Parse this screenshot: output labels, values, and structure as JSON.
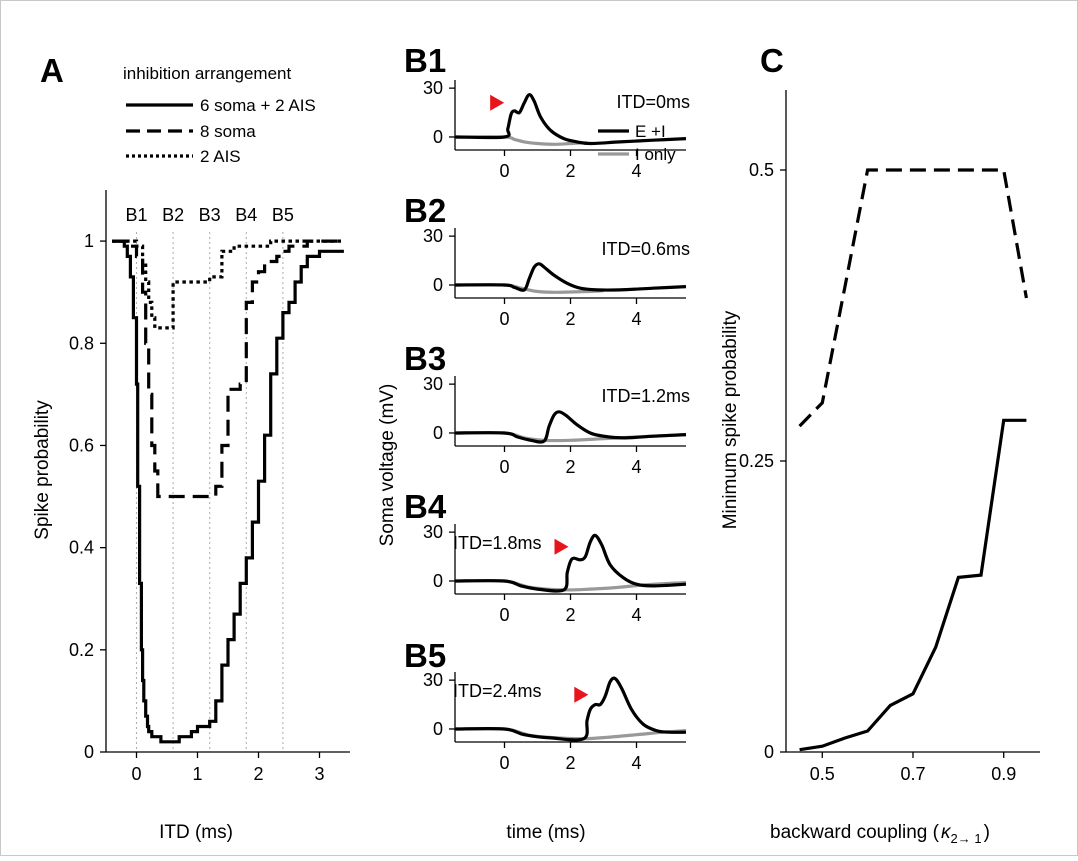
{
  "panels": {
    "A": "A",
    "B1": "B1",
    "B2": "B2",
    "B3": "B3",
    "B4": "B4",
    "B5": "B5",
    "C": "C"
  },
  "colors": {
    "ink": "#000000",
    "i_only": "#999999",
    "marker": "#e8141c",
    "guide": "#b0b0b0"
  },
  "chart_data": [
    {
      "id": "A",
      "type": "line",
      "title": "",
      "xlabel": "ITD (ms)",
      "ylabel": "Spike probability",
      "xlim": [
        -0.5,
        3.5
      ],
      "ylim": [
        0,
        1.1
      ],
      "xticks": [
        "0",
        "1",
        "2",
        "3"
      ],
      "yticks": [
        "0",
        "0.2",
        "0.4",
        "0.6",
        "0.8",
        "1"
      ],
      "legend": {
        "title": "inhibition arrangement",
        "entries": [
          "6 soma + 2 AIS",
          "8 soma",
          "2 AIS"
        ],
        "placement": "top"
      },
      "markers": [
        {
          "label": "B1",
          "x": 0.0
        },
        {
          "label": "B2",
          "x": 0.6
        },
        {
          "label": "B3",
          "x": 1.2
        },
        {
          "label": "B4",
          "x": 1.8
        },
        {
          "label": "B5",
          "x": 2.4
        }
      ],
      "series": [
        {
          "name": "6 soma + 2 AIS",
          "style": "solid",
          "x": [
            -0.4,
            -0.3,
            -0.2,
            -0.15,
            -0.1,
            -0.05,
            0.0,
            0.02,
            0.05,
            0.08,
            0.1,
            0.12,
            0.15,
            0.18,
            0.2,
            0.25,
            0.3,
            0.35,
            0.4,
            0.5,
            0.6,
            0.7,
            0.8,
            0.9,
            1.0,
            1.1,
            1.2,
            1.3,
            1.4,
            1.5,
            1.6,
            1.7,
            1.8,
            1.9,
            2.0,
            2.1,
            2.2,
            2.3,
            2.4,
            2.5,
            2.6,
            2.7,
            2.8,
            2.9,
            3.0,
            3.1,
            3.2,
            3.3,
            3.4
          ],
          "y": [
            1.0,
            1.0,
            0.99,
            0.97,
            0.93,
            0.85,
            0.72,
            0.52,
            0.33,
            0.2,
            0.14,
            0.1,
            0.07,
            0.05,
            0.04,
            0.03,
            0.03,
            0.03,
            0.02,
            0.02,
            0.02,
            0.03,
            0.03,
            0.04,
            0.05,
            0.05,
            0.06,
            0.1,
            0.17,
            0.22,
            0.27,
            0.33,
            0.38,
            0.45,
            0.53,
            0.62,
            0.74,
            0.81,
            0.86,
            0.88,
            0.92,
            0.95,
            0.97,
            0.97,
            0.98,
            0.98,
            0.98,
            0.98,
            0.98
          ]
        },
        {
          "name": "8 soma",
          "style": "dashed",
          "x": [
            -0.4,
            -0.2,
            -0.1,
            0.0,
            0.1,
            0.15,
            0.2,
            0.25,
            0.3,
            0.35,
            0.4,
            0.6,
            0.8,
            1.0,
            1.1,
            1.2,
            1.3,
            1.4,
            1.5,
            1.6,
            1.7,
            1.8,
            1.9,
            2.0,
            2.1,
            2.2,
            2.3,
            2.4,
            2.5,
            2.6,
            2.7,
            2.8,
            3.0,
            3.2,
            3.4
          ],
          "y": [
            1.0,
            1.0,
            0.99,
            0.97,
            0.9,
            0.8,
            0.7,
            0.6,
            0.55,
            0.5,
            0.5,
            0.5,
            0.5,
            0.5,
            0.5,
            0.5,
            0.52,
            0.6,
            0.71,
            0.71,
            0.72,
            0.88,
            0.92,
            0.94,
            0.96,
            0.96,
            0.97,
            0.98,
            0.99,
            0.99,
            0.99,
            1.0,
            1.0,
            1.0,
            1.0
          ]
        },
        {
          "name": "2 AIS",
          "style": "dotted",
          "x": [
            -0.4,
            -0.2,
            0.0,
            0.1,
            0.15,
            0.2,
            0.25,
            0.3,
            0.4,
            0.5,
            0.6,
            0.7,
            0.8,
            1.0,
            1.2,
            1.4,
            1.6,
            1.8,
            2.0,
            2.2,
            2.4,
            2.6,
            2.8,
            3.0,
            3.4
          ],
          "y": [
            1.0,
            1.0,
            0.99,
            0.96,
            0.92,
            0.88,
            0.85,
            0.83,
            0.83,
            0.83,
            0.92,
            0.92,
            0.92,
            0.92,
            0.93,
            0.98,
            0.99,
            0.99,
            0.99,
            1.0,
            1.0,
            1.0,
            1.0,
            1.0,
            1.0
          ]
        }
      ]
    },
    {
      "id": "B",
      "type": "line",
      "xlabel": "time (ms)",
      "ylabel": "Soma voltage (mV)",
      "xlim": [
        -1.5,
        5.5
      ],
      "ylim": [
        -8,
        35
      ],
      "xticks": [
        "0",
        "2",
        "4"
      ],
      "yticks": [
        "0",
        "30"
      ],
      "legend": {
        "entries": [
          "E +I",
          "I only"
        ],
        "placement": "top-right"
      },
      "subplots": [
        {
          "label": "B1",
          "itd": "ITD=0ms",
          "marker_t": 0.05,
          "e_i": {
            "t": [
              -1.5,
              0.0,
              0.1,
              0.2,
              0.3,
              0.45,
              0.6,
              0.75,
              0.9,
              1.1,
              1.4,
              1.8,
              2.2,
              2.6,
              3.5,
              4.5,
              5.5
            ],
            "v": [
              0,
              0,
              5,
              14,
              16,
              15,
              21,
              26,
              22,
              12,
              4,
              -1,
              -3,
              -4,
              -3,
              -2,
              -1
            ]
          },
          "i_only": {
            "t": [
              -1.5,
              0.0,
              0.3,
              0.6,
              1.0,
              1.5,
              2.0,
              2.5
            ],
            "v": [
              0,
              0,
              -1.5,
              -3,
              -4,
              -4.5,
              -4,
              -3.5
            ]
          }
        },
        {
          "label": "B2",
          "itd": "ITD=0.6ms",
          "marker_t": null,
          "e_i": {
            "t": [
              -1.5,
              0.0,
              0.3,
              0.6,
              0.75,
              0.9,
              1.05,
              1.2,
              1.5,
              1.9,
              2.3,
              2.8,
              3.5,
              4.5,
              5.5
            ],
            "v": [
              0,
              0,
              -1.5,
              -3,
              4,
              11,
              13,
              11,
              6,
              1,
              -2,
              -3,
              -3,
              -2,
              -1
            ]
          },
          "i_only": {
            "t": [
              -1.5,
              0.0,
              0.5,
              1.0,
              1.5,
              2.0,
              2.5,
              3.0
            ],
            "v": [
              0,
              0,
              -2,
              -4,
              -4.5,
              -4.3,
              -4,
              -3.5
            ]
          }
        },
        {
          "label": "B3",
          "itd": "ITD=1.2ms",
          "marker_t": null,
          "e_i": {
            "t": [
              -1.5,
              0.0,
              0.4,
              0.8,
              1.2,
              1.35,
              1.5,
              1.65,
              1.85,
              2.2,
              2.6,
              3.0,
              3.6,
              4.5,
              5.5
            ],
            "v": [
              0,
              0,
              -2.5,
              -4.5,
              -5,
              4,
              11,
              13,
              11,
              5,
              0,
              -2,
              -3,
              -2,
              -1
            ]
          },
          "i_only": {
            "t": [
              -1.5,
              0.0,
              0.6,
              1.2,
              2.0,
              3.0,
              4.0,
              5.5
            ],
            "v": [
              0,
              0,
              -3,
              -4.5,
              -4.5,
              -3.5,
              -2.5,
              -1
            ]
          }
        },
        {
          "label": "B4",
          "itd": "ITD=1.8ms",
          "marker_t": 2.0,
          "e_i": {
            "t": [
              -1.5,
              0.0,
              0.5,
              1.0,
              1.8,
              1.9,
              2.0,
              2.1,
              2.3,
              2.45,
              2.6,
              2.75,
              2.95,
              3.2,
              3.6,
              4.0,
              4.5,
              5.5
            ],
            "v": [
              0,
              0,
              -3,
              -5,
              -5.5,
              5,
              12,
              14,
              13,
              15,
              24,
              28,
              22,
              10,
              2,
              -2,
              -3,
              -2
            ]
          },
          "i_only": {
            "t": [
              -1.5,
              0.0,
              0.8,
              1.8,
              2.6,
              3.4,
              4.2,
              5.0,
              5.5
            ],
            "v": [
              0,
              0,
              -4,
              -5.5,
              -5,
              -4,
              -2.5,
              -1.5,
              -1
            ]
          }
        },
        {
          "label": "B5",
          "itd": "ITD=2.4ms",
          "marker_t": 2.6,
          "e_i": {
            "t": [
              -1.5,
              0.0,
              0.6,
              1.4,
              2.4,
              2.5,
              2.6,
              2.75,
              2.9,
              3.05,
              3.2,
              3.35,
              3.55,
              3.85,
              4.2,
              4.6,
              5.0,
              5.5
            ],
            "v": [
              0,
              0,
              -3.5,
              -5.5,
              -6,
              5,
              12,
              15,
              15,
              20,
              29,
              31,
              25,
              12,
              3,
              -1,
              -2,
              -2
            ]
          },
          "i_only": {
            "t": [
              -1.5,
              0.0,
              0.8,
              1.6,
              2.4,
              3.2,
              4.0,
              4.8,
              5.5
            ],
            "v": [
              0,
              0,
              -4,
              -5.5,
              -6,
              -5,
              -3.5,
              -2,
              -1
            ]
          }
        }
      ]
    },
    {
      "id": "C",
      "type": "line",
      "xlabel": "backward coupling (",
      "xlabel_symbol": "κ",
      "xlabel_subscript": "2→ 1",
      "xlabel_close": ")",
      "ylabel": "Minimum spike probability",
      "xlim": [
        0.42,
        0.98
      ],
      "ylim": [
        0,
        0.58
      ],
      "xticks": [
        "0.5",
        "0.7",
        "0.9"
      ],
      "yticks": [
        "0",
        "0.25",
        "0.5"
      ],
      "series": [
        {
          "name": "",
          "style": "dashed",
          "x": [
            0.45,
            0.5,
            0.55,
            0.6,
            0.65,
            0.7,
            0.75,
            0.8,
            0.85,
            0.9,
            0.95
          ],
          "y": [
            0.28,
            0.3,
            0.4,
            0.5,
            0.5,
            0.5,
            0.5,
            0.5,
            0.5,
            0.5,
            0.39
          ]
        },
        {
          "name": "",
          "style": "solid",
          "x": [
            0.45,
            0.5,
            0.55,
            0.6,
            0.65,
            0.7,
            0.75,
            0.8,
            0.85,
            0.9,
            0.95
          ],
          "y": [
            0.002,
            0.005,
            0.012,
            0.018,
            0.04,
            0.05,
            0.09,
            0.15,
            0.152,
            0.285,
            0.285
          ]
        }
      ]
    }
  ]
}
